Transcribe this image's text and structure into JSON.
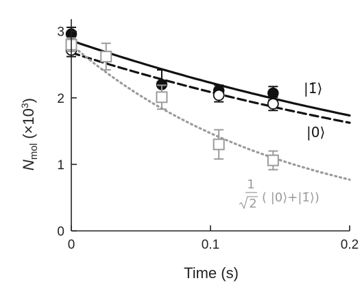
{
  "chart_data": {
    "type": "scatter",
    "xlabel": "Time (s)",
    "ylabel_main": "N",
    "ylabel_sub": "mol",
    "ylabel_rest": " (×10",
    "ylabel_exp": "3",
    "ylabel_close": ")",
    "xlim": [
      0,
      0.2
    ],
    "ylim": [
      0,
      3.1
    ],
    "x_ticks": [
      0,
      0.1,
      0.2
    ],
    "x_tick_labels": [
      "0",
      "0.1",
      "0.2"
    ],
    "y_ticks": [
      0,
      1,
      2,
      3
    ],
    "y_tick_labels": [
      "0",
      "1",
      "2",
      "3"
    ],
    "grid": false,
    "colors": {
      "black": "#111111",
      "gray": "#9a9a9a"
    },
    "series": [
      {
        "label": "|1̄⟩",
        "marker": "filled-circle",
        "points": [
          {
            "x": 0.0,
            "y": 2.96,
            "err": 0.1
          },
          {
            "x": 0.065,
            "y": 2.2,
            "err": 0.22
          },
          {
            "x": 0.106,
            "y": 2.11,
            "err": 0.08
          },
          {
            "x": 0.145,
            "y": 2.07,
            "err": 0.1
          }
        ],
        "fit": {
          "style": "solid",
          "a": 2.86,
          "tau": 0.4
        }
      },
      {
        "label": "|0⟩",
        "marker": "open-circle",
        "points": [
          {
            "x": 0.0,
            "y": 2.72,
            "err": 0.1
          },
          {
            "x": 0.106,
            "y": 2.04,
            "err": 0.1
          },
          {
            "x": 0.145,
            "y": 1.91,
            "err": 0.1
          }
        ],
        "fit": {
          "style": "dashed",
          "a": 2.68,
          "tau": 0.4
        }
      },
      {
        "label_frac_num": "1",
        "label_frac_den": "2",
        "label_rest": "( |0⟩+|1̄⟩)",
        "marker": "open-square",
        "points": [
          {
            "x": 0.0,
            "y": 2.8,
            "err": 0.1
          },
          {
            "x": 0.025,
            "y": 2.62,
            "err": 0.2
          },
          {
            "x": 0.065,
            "y": 2.01,
            "err": 0.18
          },
          {
            "x": 0.106,
            "y": 1.3,
            "err": 0.22
          },
          {
            "x": 0.145,
            "y": 1.06,
            "err": 0.14
          }
        ],
        "fit": {
          "style": "dotted",
          "a": 2.8,
          "tau": 0.155
        }
      }
    ]
  }
}
